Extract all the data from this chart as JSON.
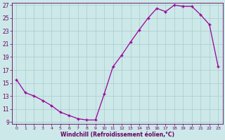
{
  "x": [
    0,
    1,
    2,
    3,
    4,
    5,
    6,
    7,
    8,
    9,
    10,
    11,
    12,
    13,
    14,
    15,
    16,
    17,
    18,
    19,
    20,
    21,
    22,
    23
  ],
  "y": [
    15.5,
    13.5,
    13.0,
    12.3,
    11.5,
    10.5,
    10.0,
    9.5,
    9.3,
    9.3,
    13.3,
    17.5,
    19.3,
    21.3,
    23.2,
    25.0,
    26.5,
    26.0,
    27.0,
    26.8,
    26.8,
    25.5,
    24.0,
    17.5
  ],
  "line_color": "#990099",
  "marker": "+",
  "bg_color": "#cce8e8",
  "grid_color": "#aacccc",
  "xlabel": "Windchill (Refroidissement éolien,°C)",
  "xlabel_color": "#660066",
  "tick_color": "#660066",
  "spine_color": "#660066",
  "ylim": [
    9,
    27
  ],
  "xlim": [
    -0.5,
    23.5
  ],
  "yticks": [
    9,
    11,
    13,
    15,
    17,
    19,
    21,
    23,
    25,
    27
  ],
  "xticks": [
    0,
    1,
    2,
    3,
    4,
    5,
    6,
    7,
    8,
    9,
    10,
    11,
    12,
    13,
    14,
    15,
    16,
    17,
    18,
    19,
    20,
    21,
    22,
    23
  ],
  "xlabel_fontsize": 5.5,
  "tick_fontsize": 5.5
}
